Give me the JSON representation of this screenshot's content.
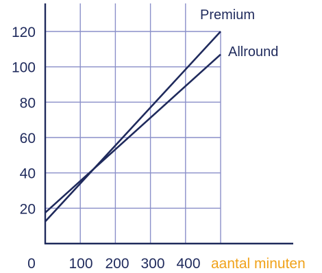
{
  "chart_data": {
    "type": "line",
    "xlabel": "aantal minuten",
    "ylabel": "",
    "xlim": [
      0,
      500
    ],
    "ylim": [
      0,
      120
    ],
    "x_ticks": [
      "0",
      "100",
      "200",
      "300",
      "400"
    ],
    "y_ticks": [
      "20",
      "40",
      "60",
      "80",
      "100",
      "120"
    ],
    "grid": true,
    "series": [
      {
        "name": "Premium",
        "x": [
          0,
          500
        ],
        "y": [
          12.5,
          120
        ]
      },
      {
        "name": "Allround",
        "x": [
          0,
          500
        ],
        "y": [
          17.5,
          107
        ]
      }
    ],
    "colors": {
      "axis": "#1f2a5c",
      "grid": "#8a8fc9",
      "lines": "#1f2a5c",
      "xlabel": "#f0a21a",
      "ticks": "#1f2a5c"
    }
  }
}
